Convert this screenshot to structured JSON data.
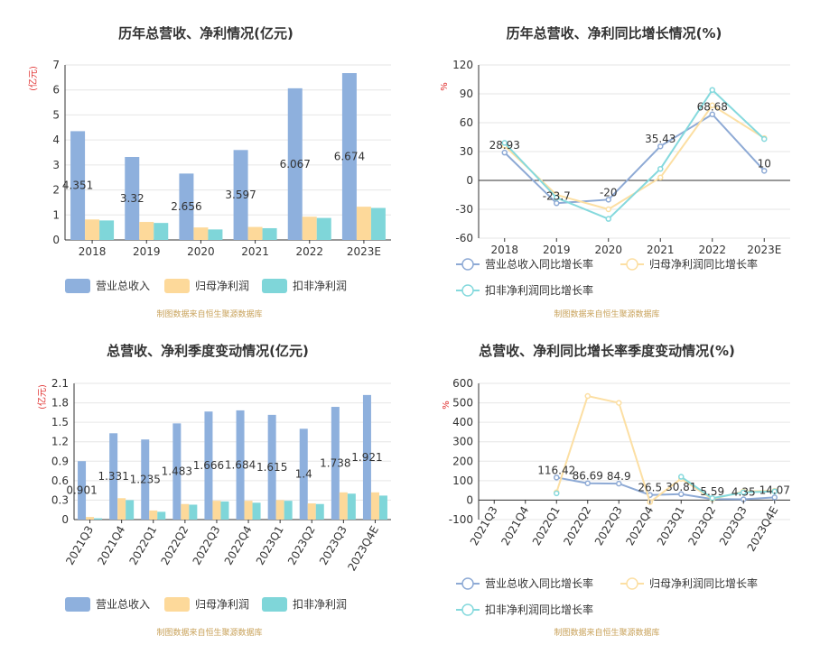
{
  "colors": {
    "revenue": "#8eb0dd",
    "net_profit": "#fdd99a",
    "deducted_profit": "#7fd6d9",
    "revenue_line": "#8eaad5",
    "net_line": "#fcdfa3",
    "deducted_line": "#85d9dd",
    "unit": "#e0302f",
    "source": "#c8a25a"
  },
  "legend": {
    "bar": [
      "营业总收入",
      "归母净利润",
      "扣非净利润"
    ],
    "line": [
      "营业总收入同比增长率",
      "归母净利润同比增长率",
      "扣非净利润同比增长率"
    ]
  },
  "source_text": "制图数据来自恒生聚源数据库",
  "chart_data": [
    {
      "type": "bar",
      "title": "历年总营收、净利情况(亿元)",
      "ylabel": "(亿元)",
      "categories": [
        "2018",
        "2019",
        "2020",
        "2021",
        "2022",
        "2023E"
      ],
      "ylim": [
        0,
        7
      ],
      "yticks": [
        0,
        1,
        2,
        3,
        4,
        5,
        6,
        7
      ],
      "series": [
        {
          "name": "营业总收入",
          "values": [
            4.351,
            3.32,
            2.656,
            3.597,
            6.067,
            6.674
          ]
        },
        {
          "name": "归母净利润",
          "values": [
            0.82,
            0.72,
            0.5,
            0.52,
            0.93,
            1.33
          ]
        },
        {
          "name": "扣非净利润",
          "values": [
            0.78,
            0.68,
            0.42,
            0.47,
            0.88,
            1.28
          ]
        }
      ],
      "labels": [
        "4.351",
        "3.32",
        "2.656",
        "3.597",
        "6.067",
        "6.674"
      ],
      "grid": true,
      "legend": "bottom"
    },
    {
      "type": "line",
      "title": "历年总营收、净利同比增长情况(%)",
      "ylabel": "%",
      "categories": [
        "2018",
        "2019",
        "2020",
        "2021",
        "2022",
        "2023E"
      ],
      "ylim": [
        -60,
        120
      ],
      "yticks": [
        -60,
        -30,
        0,
        30,
        60,
        90,
        120
      ],
      "series": [
        {
          "name": "营业总收入同比增长率",
          "values": [
            28.93,
            -23.7,
            -20,
            35.43,
            68.68,
            10
          ]
        },
        {
          "name": "归母净利润同比增长率",
          "values": [
            36,
            -15,
            -30,
            3,
            78,
            44
          ]
        },
        {
          "name": "扣非净利润同比增长率",
          "values": [
            39,
            -18,
            -40,
            12,
            94,
            43
          ]
        }
      ],
      "labels": [
        "28.93",
        "-23.7",
        "-20",
        "35.43",
        "68.68",
        "10"
      ],
      "grid": true,
      "legend": "bottom"
    },
    {
      "type": "bar",
      "title": "总营收、净利季度变动情况(亿元)",
      "ylabel": "(亿元)",
      "categories": [
        "2021Q3",
        "2021Q4",
        "2022Q1",
        "2022Q2",
        "2022Q3",
        "2022Q4",
        "2023Q1",
        "2023Q2",
        "2023Q3",
        "2023Q4E"
      ],
      "ylim": [
        0,
        2.1
      ],
      "yticks": [
        0,
        0.3,
        0.6,
        0.9,
        1.2,
        1.5,
        1.8,
        2.1
      ],
      "series": [
        {
          "name": "营业总收入",
          "values": [
            0.901,
            1.331,
            1.235,
            1.483,
            1.666,
            1.684,
            1.615,
            1.4,
            1.738,
            1.921
          ]
        },
        {
          "name": "归母净利润",
          "values": [
            0.04,
            0.33,
            0.14,
            0.24,
            0.29,
            0.29,
            0.3,
            0.25,
            0.42,
            0.42
          ]
        },
        {
          "name": "扣非净利润",
          "values": [
            0.02,
            0.3,
            0.12,
            0.23,
            0.28,
            0.26,
            0.29,
            0.24,
            0.4,
            0.37
          ]
        }
      ],
      "labels": [
        "0.901",
        "1.331",
        "1.235",
        "1.483",
        "1.666",
        "1.684",
        "1.615",
        "1.4",
        "1.738",
        "1.921"
      ],
      "grid": true,
      "legend": "bottom"
    },
    {
      "type": "line",
      "title": "总营收、净利同比增长率季度变动情况(%)",
      "ylabel": "%",
      "categories": [
        "2021Q3",
        "2021Q4",
        "2022Q1",
        "2022Q2",
        "2022Q3",
        "2022Q4",
        "2023Q1",
        "2023Q2",
        "2023Q3",
        "2023Q4E"
      ],
      "ylim": [
        -100,
        600
      ],
      "yticks": [
        -100,
        0,
        100,
        200,
        300,
        400,
        500,
        600
      ],
      "series": [
        {
          "name": "营业总收入同比增长率",
          "values": [
            null,
            null,
            116.42,
            86.69,
            84.9,
            26.5,
            30.81,
            5.59,
            4.35,
            14.07
          ]
        },
        {
          "name": "归母净利润同比增长率",
          "values": [
            null,
            null,
            40,
            535,
            500,
            -10,
            110,
            5,
            45,
            48
          ]
        },
        {
          "name": "扣非净利润同比增长率",
          "values": [
            null,
            null,
            35,
            null,
            null,
            null,
            120,
            10,
            40,
            45
          ]
        }
      ],
      "labels": [
        "",
        "",
        "116.42",
        "86.69",
        "84.9",
        "26.5",
        "30.81",
        "5.59",
        "4.35",
        "14.07"
      ],
      "grid": true,
      "legend": "bottom"
    }
  ]
}
